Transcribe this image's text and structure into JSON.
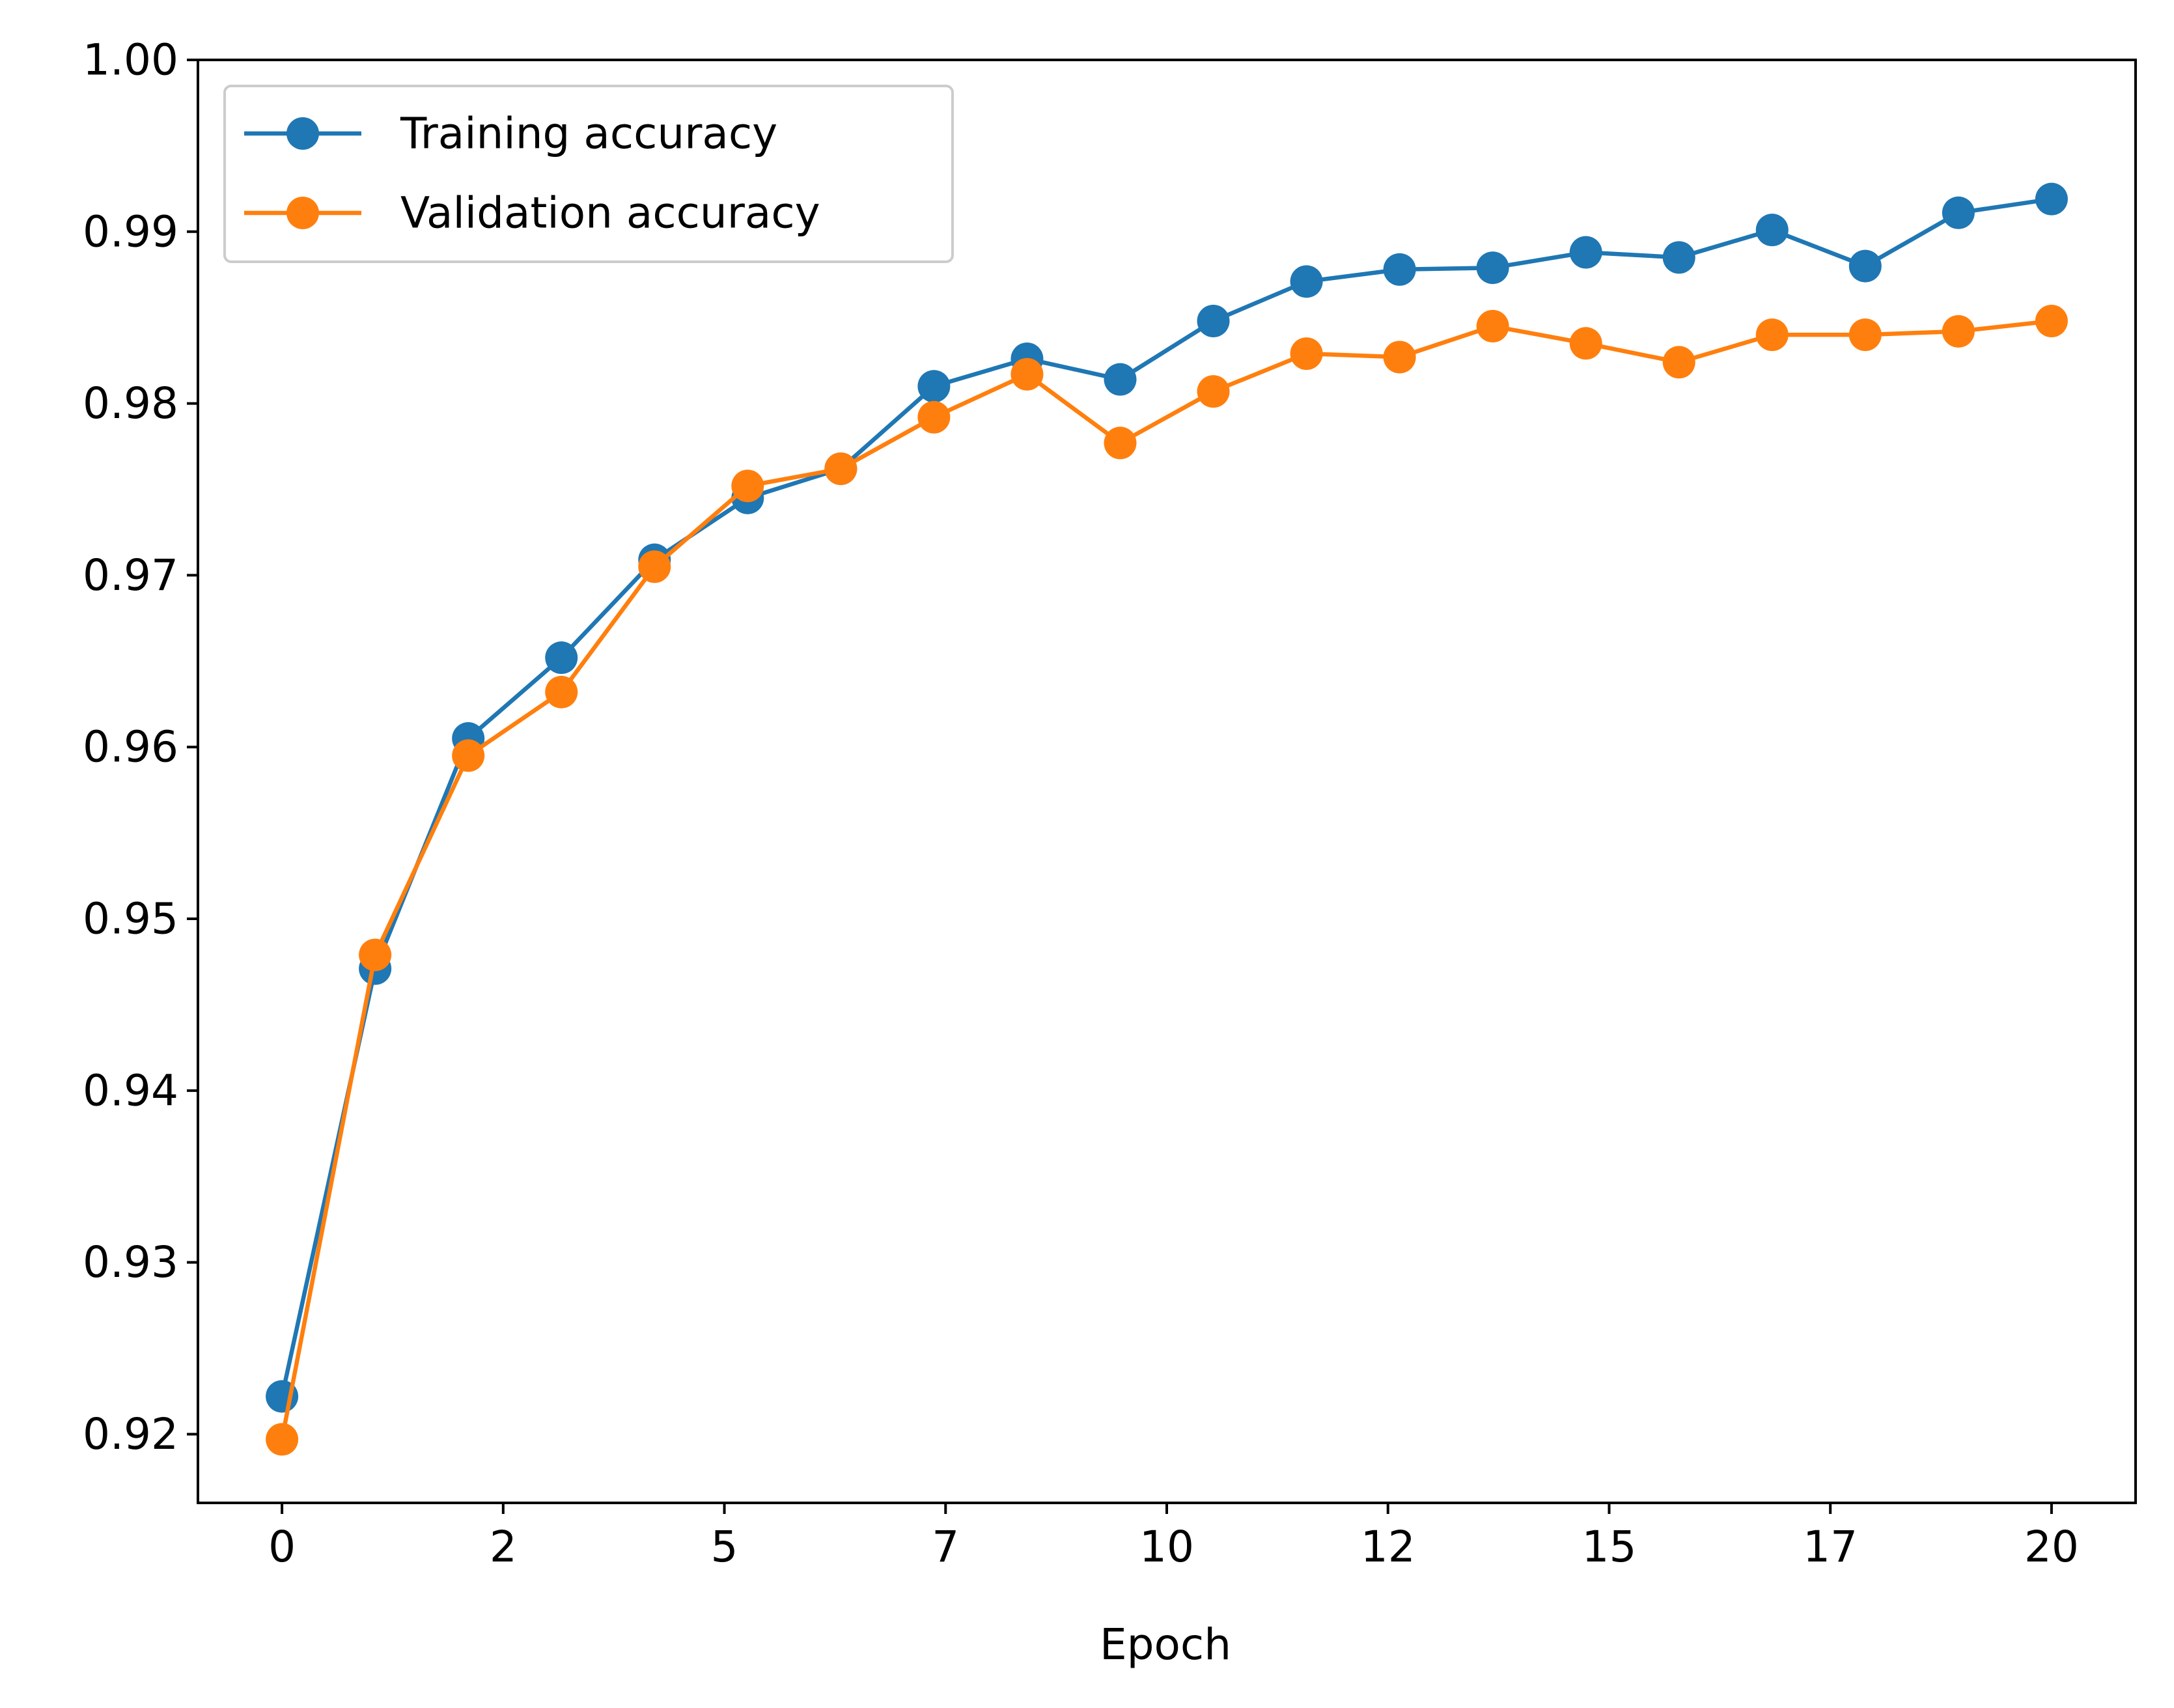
{
  "chart_data": {
    "type": "line",
    "title": "",
    "xlabel": "Epoch",
    "ylabel": "",
    "xlim": [
      -0.95,
      20.95
    ],
    "ylim": [
      0.916,
      1.0
    ],
    "x_ticks": [
      0,
      2.5,
      5,
      7.5,
      10,
      12.5,
      15,
      17.5,
      20
    ],
    "x_tick_labels": [
      "0",
      "2",
      "5",
      "7",
      "10",
      "12",
      "15",
      "17",
      "20"
    ],
    "y_ticks": [
      0.92,
      0.93,
      0.94,
      0.95,
      0.96,
      0.97,
      0.98,
      0.99,
      1.0
    ],
    "y_tick_labels": [
      "0.92",
      "0.93",
      "0.94",
      "0.95",
      "0.96",
      "0.97",
      "0.98",
      "0.99",
      "1.00"
    ],
    "grid": false,
    "legend_position": "top-left",
    "x": [
      0,
      1.0526,
      2.1053,
      3.1579,
      4.2105,
      5.2632,
      6.3158,
      7.3684,
      8.4211,
      9.4737,
      10.5263,
      11.5789,
      12.6316,
      13.6842,
      14.7368,
      15.7895,
      16.8421,
      17.8947,
      18.9474,
      20
    ],
    "series": [
      {
        "name": "Training accuracy",
        "color": "#1f77b4",
        "values": [
          0.9222,
          0.9471,
          0.9605,
          0.9652,
          0.9709,
          0.9745,
          0.9762,
          0.981,
          0.9826,
          0.9814,
          0.9848,
          0.9871,
          0.9878,
          0.9879,
          0.9888,
          0.9885,
          0.9901,
          0.988,
          0.9911,
          0.9919
        ]
      },
      {
        "name": "Validation accuracy",
        "color": "#ff7f0e",
        "values": [
          0.9197,
          0.9479,
          0.9595,
          0.9632,
          0.9705,
          0.9752,
          0.9762,
          0.9792,
          0.9817,
          0.9777,
          0.9807,
          0.9829,
          0.9827,
          0.9845,
          0.9835,
          0.9824,
          0.984,
          0.984,
          0.9842,
          0.9848
        ]
      }
    ]
  }
}
